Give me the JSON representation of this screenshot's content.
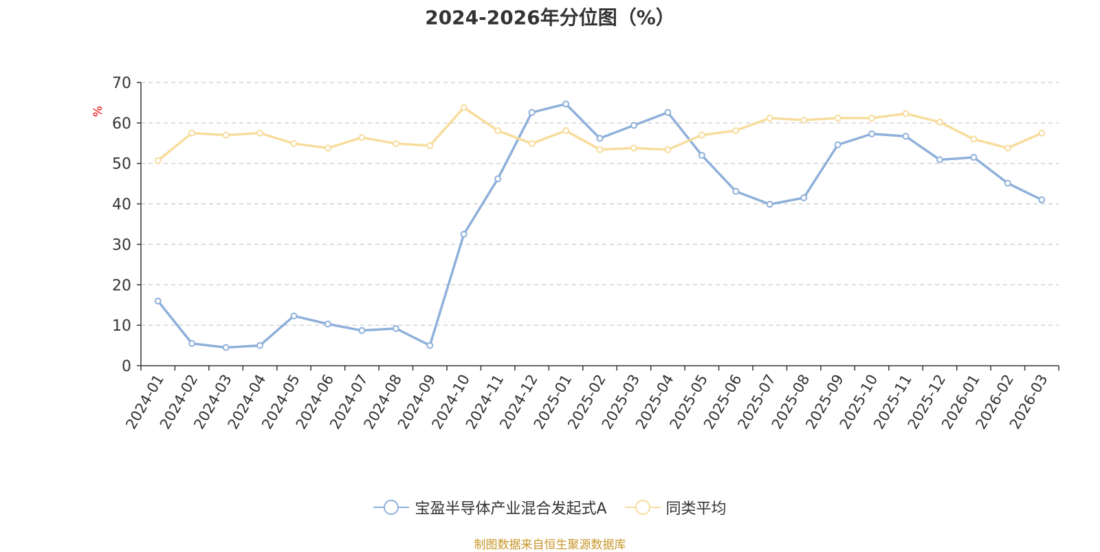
{
  "chart_data": {
    "type": "line",
    "title": "2024-2026年分位图（%）",
    "ylabel": "%",
    "xlabel": "",
    "ylim": [
      0,
      70
    ],
    "yticks": [
      0,
      10,
      20,
      30,
      40,
      50,
      60,
      70
    ],
    "grid": true,
    "legend_position": "bottom",
    "categories": [
      "2024-01",
      "2024-02",
      "2024-03",
      "2024-04",
      "2024-05",
      "2024-06",
      "2024-07",
      "2024-08",
      "2024-09",
      "2024-10",
      "2024-11",
      "2024-12",
      "2025-01",
      "2025-02",
      "2025-03",
      "2025-04",
      "2025-05",
      "2025-06",
      "2025-07",
      "2025-08",
      "2025-09",
      "2025-10",
      "2025-11",
      "2025-12",
      "2026-01",
      "2026-02",
      "2026-03"
    ],
    "series": [
      {
        "name": "宝盈半导体产业混合发起式A",
        "color": "#8eb0da",
        "values": [
          16.0,
          5.5,
          4.5,
          5.0,
          12.3,
          10.3,
          8.7,
          9.2,
          5.0,
          32.5,
          46.2,
          62.6,
          64.7,
          56.2,
          59.4,
          62.6,
          52.0,
          43.1,
          39.9,
          41.5,
          54.6,
          57.3,
          56.7,
          50.9,
          51.5,
          45.1,
          41.0
        ]
      },
      {
        "name": "同类平均",
        "color": "#f8dc9c",
        "values": [
          50.7,
          57.5,
          57.0,
          57.5,
          54.9,
          53.8,
          56.4,
          54.9,
          54.4,
          63.8,
          58.1,
          54.9,
          58.1,
          53.4,
          53.8,
          53.4,
          57.0,
          58.1,
          61.2,
          60.7,
          61.2,
          61.2,
          62.3,
          60.2,
          56.0,
          53.8,
          57.5
        ]
      }
    ]
  },
  "source_note": "制图数据来自恒生聚源数据库"
}
